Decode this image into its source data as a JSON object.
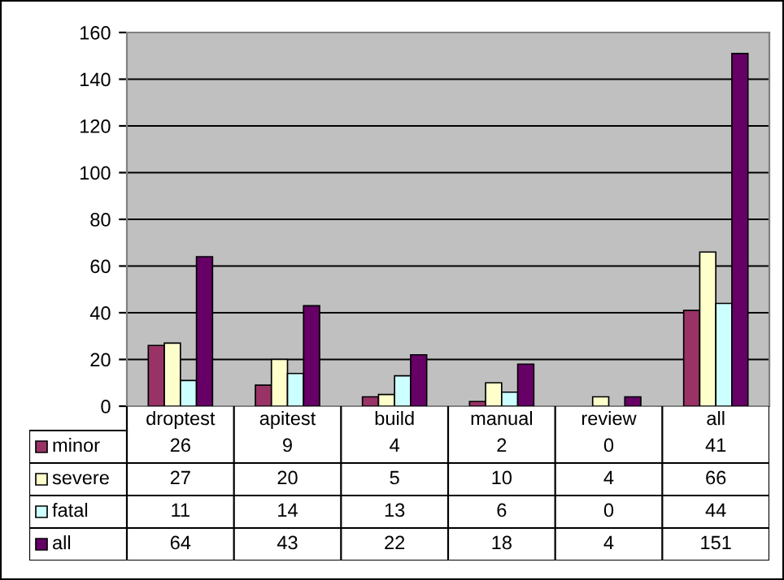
{
  "chart_data": {
    "type": "bar",
    "categories": [
      "droptest",
      "apitest",
      "build",
      "manual",
      "review",
      "all"
    ],
    "series": [
      {
        "name": "minor",
        "color": "#993366",
        "values": [
          26,
          9,
          4,
          2,
          0,
          41
        ]
      },
      {
        "name": "severe",
        "color": "#ffffcc",
        "values": [
          27,
          20,
          5,
          10,
          4,
          66
        ]
      },
      {
        "name": "fatal",
        "color": "#ccffff",
        "values": [
          11,
          14,
          13,
          6,
          0,
          44
        ]
      },
      {
        "name": "all",
        "color": "#660066",
        "values": [
          64,
          43,
          22,
          18,
          4,
          151
        ]
      }
    ],
    "ylim": [
      0,
      160
    ],
    "yticks": [
      0,
      20,
      40,
      60,
      80,
      100,
      120,
      140,
      160
    ],
    "grid": "y",
    "legend": "bottom",
    "data_labels": true
  }
}
